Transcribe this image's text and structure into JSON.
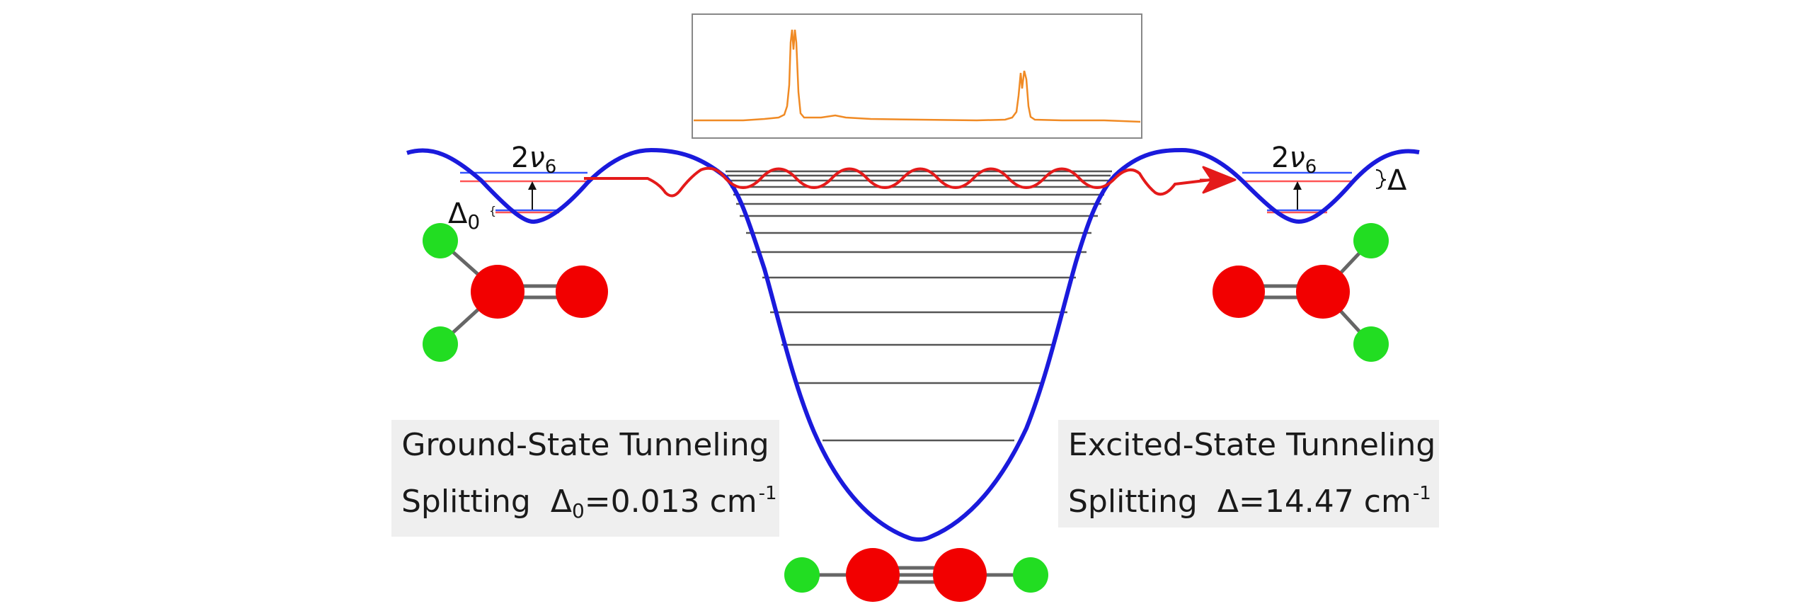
{
  "colors": {
    "potential": "#1a1adc",
    "wavefunction": "#e41a1a",
    "spectrum": "#f08a24",
    "levels": "#555555",
    "carbon": "#f20000",
    "hydrogen": "#22dd22",
    "bond": "#666666",
    "caption_bg": "#efefef"
  },
  "labels": {
    "left_overtone_base": "2",
    "left_overtone_symbol": "ν",
    "left_overtone_sub": "6",
    "right_overtone_base": "2",
    "right_overtone_symbol": "ν",
    "right_overtone_sub": "6",
    "left_delta_symbol": "Δ",
    "left_delta_sub": "0",
    "right_delta_symbol": "Δ"
  },
  "captions": {
    "ground": {
      "line1": "Ground-State Tunneling",
      "line2_prefix": "Splitting",
      "delta": "Δ",
      "delta_sub": "0",
      "value": "=0.013 cm",
      "unit_sup": "-1"
    },
    "excited": {
      "line1": "Excited-State Tunneling",
      "line2_prefix": "Splitting",
      "delta": "Δ",
      "value": "=14.47 cm",
      "unit_sup": "-1"
    }
  },
  "icons": {
    "molecule_left": "vinylidene-molecule-icon",
    "molecule_right": "vinylidene-molecule-icon",
    "molecule_bottom": "acetylene-molecule-icon",
    "tunneling_arrow": "arrow-right-icon"
  }
}
